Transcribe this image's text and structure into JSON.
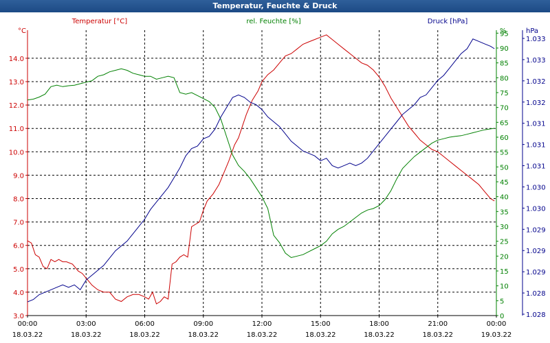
{
  "window": {
    "title": "Temperatur, Feuchte & Druck"
  },
  "chart_data": {
    "type": "line",
    "title": "Temperatur, Feuchte & Druck",
    "grid": true,
    "x_ticks": [
      {
        "time": "00:00",
        "date": "18.03.22",
        "hour": 0
      },
      {
        "time": "03:00",
        "date": "18.03.22",
        "hour": 3
      },
      {
        "time": "06:00",
        "date": "18.03.22",
        "hour": 6
      },
      {
        "time": "09:00",
        "date": "18.03.22",
        "hour": 9
      },
      {
        "time": "12:00",
        "date": "18.03.22",
        "hour": 12
      },
      {
        "time": "15:00",
        "date": "18.03.22",
        "hour": 15
      },
      {
        "time": "18:00",
        "date": "18.03.22",
        "hour": 18
      },
      {
        "time": "21:00",
        "date": "18.03.22",
        "hour": 21
      },
      {
        "time": "00:00",
        "date": "19.03.22",
        "hour": 24
      }
    ],
    "axes": {
      "temperature": {
        "label": "Temperatur [°C]",
        "unit": "°C",
        "color": "#cc0000",
        "range": [
          3.0,
          15.2
        ],
        "ticks": [
          "3.0",
          "4.0",
          "5.0",
          "6.0",
          "7.0",
          "8.0",
          "9.0",
          "10.0",
          "11.0",
          "12.0",
          "13.0",
          "14.0"
        ]
      },
      "humidity": {
        "label": "rel. Feuchte [%]",
        "unit": "%",
        "color": "#008000",
        "range": [
          0,
          96
        ],
        "ticks": [
          "0",
          "5",
          "10",
          "15",
          "20",
          "25",
          "30",
          "35",
          "40",
          "45",
          "50",
          "55",
          "60",
          "65",
          "70",
          "75",
          "80",
          "85",
          "90",
          "95"
        ]
      },
      "pressure": {
        "label": "Druck [hPa]",
        "unit": "hPa",
        "color": "#00008b",
        "range": [
          1027.52,
          1033.38
        ],
        "ticks": [
          "1.028",
          "1.028",
          "1.029",
          "1.029",
          "1.029",
          "1.030",
          "1.030",
          "1.031",
          "1.031",
          "1.031",
          "1.032",
          "1.032",
          "1.033",
          "1.033"
        ]
      }
    },
    "series": [
      {
        "name": "Temperatur [°C]",
        "axis": "temperature",
        "color": "#cc0000",
        "x": [
          0,
          0.2,
          0.4,
          0.6,
          0.8,
          1.0,
          1.2,
          1.4,
          1.6,
          1.8,
          2.0,
          2.3,
          2.6,
          2.8,
          3.0,
          3.3,
          3.6,
          3.9,
          4.2,
          4.5,
          4.8,
          5.1,
          5.4,
          5.7,
          6.0,
          6.2,
          6.4,
          6.6,
          6.8,
          7.0,
          7.2,
          7.4,
          7.6,
          7.8,
          8.0,
          8.2,
          8.4,
          8.6,
          8.8,
          9.0,
          9.2,
          9.5,
          9.8,
          10.0,
          10.3,
          10.6,
          10.8,
          11.0,
          11.2,
          11.5,
          11.8,
          12.0,
          12.3,
          12.6,
          12.9,
          13.2,
          13.5,
          13.8,
          14.1,
          14.4,
          14.7,
          15.0,
          15.3,
          15.6,
          15.9,
          16.2,
          16.5,
          16.8,
          17.1,
          17.4,
          17.7,
          18.0,
          18.3,
          18.6,
          18.9,
          19.2,
          19.5,
          19.8,
          20.1,
          20.4,
          20.7,
          21.0,
          21.3,
          21.6,
          21.9,
          22.2,
          22.5,
          22.8,
          23.1,
          23.4,
          23.7,
          23.9
        ],
        "y": [
          6.2,
          6.1,
          5.6,
          5.5,
          5.1,
          5.0,
          5.4,
          5.3,
          5.4,
          5.3,
          5.3,
          5.2,
          4.9,
          4.8,
          4.6,
          4.3,
          4.1,
          4.0,
          4.0,
          3.7,
          3.6,
          3.8,
          3.9,
          3.9,
          3.8,
          3.7,
          4.0,
          3.5,
          3.6,
          3.8,
          3.7,
          5.2,
          5.3,
          5.5,
          5.6,
          5.5,
          6.8,
          6.9,
          7.0,
          7.5,
          7.9,
          8.2,
          8.6,
          9.0,
          9.6,
          10.3,
          10.6,
          11.1,
          11.6,
          12.2,
          12.6,
          13.0,
          13.3,
          13.5,
          13.8,
          14.1,
          14.2,
          14.4,
          14.6,
          14.7,
          14.8,
          14.9,
          15.0,
          14.8,
          14.6,
          14.4,
          14.2,
          14.0,
          13.8,
          13.7,
          13.5,
          13.2,
          12.8,
          12.3,
          11.9,
          11.5,
          11.1,
          10.8,
          10.5,
          10.3,
          10.1,
          10.0,
          9.8,
          9.6,
          9.4,
          9.2,
          9.0,
          8.8,
          8.6,
          8.3,
          8.0,
          7.9
        ]
      },
      {
        "name": "rel. Feuchte [%]",
        "axis": "humidity",
        "color": "#008000",
        "x": [
          0,
          0.3,
          0.6,
          0.9,
          1.2,
          1.5,
          1.8,
          2.1,
          2.4,
          2.7,
          3.0,
          3.3,
          3.6,
          3.9,
          4.2,
          4.5,
          4.8,
          5.1,
          5.4,
          5.7,
          6.0,
          6.3,
          6.6,
          6.9,
          7.2,
          7.5,
          7.8,
          8.1,
          8.4,
          8.7,
          9.0,
          9.3,
          9.6,
          9.9,
          10.2,
          10.5,
          10.8,
          11.1,
          11.4,
          11.7,
          12.0,
          12.3,
          12.6,
          12.9,
          13.2,
          13.5,
          13.8,
          14.1,
          14.4,
          14.7,
          15.0,
          15.3,
          15.6,
          15.9,
          16.2,
          16.5,
          16.8,
          17.1,
          17.4,
          17.7,
          18.0,
          18.3,
          18.6,
          18.9,
          19.2,
          19.5,
          19.8,
          20.1,
          20.4,
          20.7,
          21.0,
          21.3,
          21.6,
          21.9,
          22.2,
          22.5,
          22.8,
          23.1,
          23.4,
          23.7,
          23.9
        ],
        "y": [
          72.5,
          72.8,
          73.5,
          74.5,
          77.0,
          77.5,
          77.0,
          77.3,
          77.5,
          78.0,
          78.5,
          79.0,
          80.5,
          81.0,
          82.0,
          82.5,
          83.0,
          82.5,
          81.5,
          81.0,
          80.5,
          80.5,
          79.5,
          80.0,
          80.5,
          80.0,
          75.0,
          74.5,
          75.0,
          74.0,
          73.0,
          72.0,
          70.0,
          66.0,
          60.0,
          54.0,
          50.5,
          48.5,
          46.0,
          43.0,
          40.0,
          36.0,
          27.0,
          24.5,
          21.0,
          19.5,
          20.0,
          20.5,
          21.5,
          22.5,
          23.5,
          25.0,
          27.5,
          29.0,
          30.0,
          31.5,
          33.0,
          34.5,
          35.5,
          36.0,
          37.0,
          39.0,
          42.0,
          46.0,
          49.5,
          51.5,
          53.5,
          55.0,
          56.5,
          58.0,
          59.0,
          59.5,
          60.0,
          60.3,
          60.5,
          61.0,
          61.5,
          62.0,
          62.5,
          62.8,
          63.0
        ]
      },
      {
        "name": "Druck [hPa]",
        "axis": "pressure",
        "color": "#00008b",
        "x": [
          0,
          0.3,
          0.6,
          0.9,
          1.2,
          1.5,
          1.8,
          2.1,
          2.4,
          2.7,
          3.0,
          3.3,
          3.6,
          3.9,
          4.2,
          4.5,
          4.8,
          5.1,
          5.4,
          5.7,
          6.0,
          6.3,
          6.6,
          6.9,
          7.2,
          7.5,
          7.8,
          8.1,
          8.4,
          8.7,
          9.0,
          9.3,
          9.6,
          9.9,
          10.2,
          10.5,
          10.8,
          11.1,
          11.4,
          11.7,
          12.0,
          12.3,
          12.6,
          12.9,
          13.2,
          13.5,
          13.8,
          14.1,
          14.4,
          14.7,
          15.0,
          15.3,
          15.6,
          15.9,
          16.2,
          16.5,
          16.8,
          17.1,
          17.4,
          17.7,
          18.0,
          18.3,
          18.6,
          18.9,
          19.2,
          19.5,
          19.8,
          20.1,
          20.4,
          20.7,
          21.0,
          21.3,
          21.6,
          21.9,
          22.2,
          22.5,
          22.8,
          23.1,
          23.4,
          23.7,
          23.9
        ],
        "y": [
          1027.8,
          1027.85,
          1027.95,
          1028.0,
          1028.05,
          1028.1,
          1028.15,
          1028.1,
          1028.15,
          1028.05,
          1028.25,
          1028.35,
          1028.45,
          1028.55,
          1028.7,
          1028.85,
          1028.95,
          1029.05,
          1029.2,
          1029.35,
          1029.5,
          1029.7,
          1029.85,
          1030.0,
          1030.15,
          1030.35,
          1030.55,
          1030.8,
          1030.95,
          1031.0,
          1031.15,
          1031.2,
          1031.35,
          1031.6,
          1031.8,
          1032.0,
          1032.05,
          1032.0,
          1031.9,
          1031.85,
          1031.75,
          1031.6,
          1031.5,
          1031.4,
          1031.25,
          1031.1,
          1031.0,
          1030.9,
          1030.85,
          1030.8,
          1030.7,
          1030.75,
          1030.6,
          1030.55,
          1030.6,
          1030.65,
          1030.6,
          1030.65,
          1030.75,
          1030.9,
          1031.05,
          1031.2,
          1031.35,
          1031.5,
          1031.65,
          1031.75,
          1031.85,
          1032.0,
          1032.05,
          1032.2,
          1032.35,
          1032.45,
          1032.6,
          1032.75,
          1032.9,
          1033.0,
          1033.2,
          1033.15,
          1033.1,
          1033.05,
          1033.0
        ]
      }
    ]
  }
}
